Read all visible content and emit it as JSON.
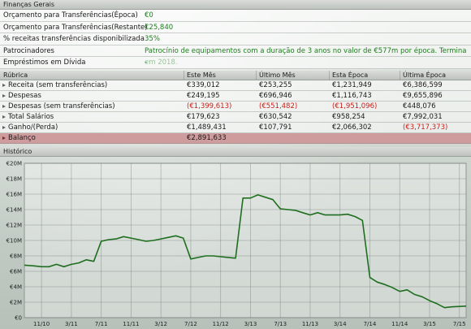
{
  "general": {
    "header": "Finanças Gerais",
    "rows": [
      {
        "label": "Orçamento para Transferências(Época)",
        "value": "€0",
        "tone": "green"
      },
      {
        "label": "Orçamento para Transferências(Restante)",
        "value": "€25,840",
        "tone": "green"
      },
      {
        "label": "% receitas transferências disponibilizada",
        "value": "35%",
        "tone": "green"
      },
      {
        "label": "Patrocinadores",
        "value": "Patrocínio de equipamentos com a duração de 3 anos no valor de €577m por época. Termina em 2018.",
        "tone": "green"
      },
      {
        "label": "Empréstimos em Dívida",
        "value": "-",
        "tone": "green"
      }
    ]
  },
  "table": {
    "headers": [
      "Rúbrica",
      "Este Mês",
      "Último Mês",
      "Esta Época",
      "Última Época"
    ],
    "rows": [
      {
        "label": "Receita (sem transferências)",
        "cells": [
          "€339,012",
          "€253,255",
          "€1,231,949",
          "€6,386,599"
        ],
        "tones": [
          "",
          "",
          "",
          ""
        ]
      },
      {
        "label": "Despesas",
        "cells": [
          "€249,195",
          "€696,946",
          "€1,116,743",
          "€9,655,896"
        ],
        "tones": [
          "",
          "",
          "",
          ""
        ]
      },
      {
        "label": "Despesas (sem transferências)",
        "cells": [
          "(€1,399,613)",
          "(€551,482)",
          "(€1,951,096)",
          "€448,076"
        ],
        "tones": [
          "red",
          "red",
          "red",
          ""
        ]
      },
      {
        "label": "Total Salários",
        "cells": [
          "€179,623",
          "€630,542",
          "€958,254",
          "€7,992,031"
        ],
        "tones": [
          "",
          "",
          "",
          ""
        ]
      },
      {
        "label": "Ganho/(Perda)",
        "cells": [
          "€1,489,431",
          "€107,791",
          "€2,066,302",
          "(€3,717,373)"
        ],
        "tones": [
          "",
          "",
          "",
          "red"
        ]
      }
    ],
    "balance": {
      "label": "Balanço",
      "value": "€2,891,633"
    }
  },
  "history": {
    "header": "Histórico"
  },
  "chart_data": {
    "type": "line",
    "title": "",
    "xlabel": "",
    "ylabel": "",
    "ylim": [
      0,
      20
    ],
    "y_unit": "€ millions",
    "y_ticks": [
      "€0",
      "€2M",
      "€4M",
      "€6M",
      "€8M",
      "€10M",
      "€12M",
      "€14M",
      "€16M",
      "€18M",
      "€20M"
    ],
    "x_ticks": [
      {
        "label": "11/10",
        "x": 1
      },
      {
        "label": "3/11",
        "x": 5
      },
      {
        "label": "7/11",
        "x": 9
      },
      {
        "label": "11/11",
        "x": 13
      },
      {
        "label": "3/12",
        "x": 17
      },
      {
        "label": "7/12",
        "x": 21
      },
      {
        "label": "11/12",
        "x": 25
      },
      {
        "label": "3/13",
        "x": 29
      },
      {
        "label": "7/13",
        "x": 33
      },
      {
        "label": "11/13",
        "x": 37
      },
      {
        "label": "3/14",
        "x": 41
      },
      {
        "label": "7/14",
        "x": 45
      },
      {
        "label": "11/14",
        "x": 49
      },
      {
        "label": "3/15",
        "x": 53
      },
      {
        "label": "7/15",
        "x": 57
      }
    ],
    "xlim": [
      -1.3,
      57.9
    ],
    "line_color": "#1f6e1f",
    "grid": true,
    "series": [
      {
        "values": [
          {
            "x": -1.3,
            "y": 6.8
          },
          {
            "x": 0.0,
            "y": 6.7
          },
          {
            "x": 1.0,
            "y": 6.6
          },
          {
            "x": 2.0,
            "y": 6.6
          },
          {
            "x": 3.0,
            "y": 6.9
          },
          {
            "x": 4.0,
            "y": 6.6
          },
          {
            "x": 5.0,
            "y": 6.9
          },
          {
            "x": 6.0,
            "y": 7.1
          },
          {
            "x": 7.0,
            "y": 7.5
          },
          {
            "x": 8.0,
            "y": 7.3
          },
          {
            "x": 9.0,
            "y": 9.9
          },
          {
            "x": 10.0,
            "y": 10.1
          },
          {
            "x": 11.0,
            "y": 10.2
          },
          {
            "x": 12.0,
            "y": 10.5
          },
          {
            "x": 13.0,
            "y": 10.3
          },
          {
            "x": 14.0,
            "y": 10.1
          },
          {
            "x": 15.0,
            "y": 9.9
          },
          {
            "x": 16.0,
            "y": 10.0
          },
          {
            "x": 17.0,
            "y": 10.2
          },
          {
            "x": 18.0,
            "y": 10.4
          },
          {
            "x": 19.0,
            "y": 10.6
          },
          {
            "x": 20.0,
            "y": 10.3
          },
          {
            "x": 21.0,
            "y": 7.6
          },
          {
            "x": 22.0,
            "y": 7.8
          },
          {
            "x": 23.0,
            "y": 8.0
          },
          {
            "x": 24.0,
            "y": 8.0
          },
          {
            "x": 25.0,
            "y": 7.9
          },
          {
            "x": 26.0,
            "y": 7.8
          },
          {
            "x": 27.0,
            "y": 7.7
          },
          {
            "x": 28.0,
            "y": 15.5
          },
          {
            "x": 29.0,
            "y": 15.5
          },
          {
            "x": 30.0,
            "y": 15.9
          },
          {
            "x": 31.0,
            "y": 15.6
          },
          {
            "x": 32.0,
            "y": 15.3
          },
          {
            "x": 33.0,
            "y": 14.1
          },
          {
            "x": 34.0,
            "y": 14.0
          },
          {
            "x": 35.0,
            "y": 13.9
          },
          {
            "x": 36.0,
            "y": 13.6
          },
          {
            "x": 37.0,
            "y": 13.3
          },
          {
            "x": 38.0,
            "y": 13.6
          },
          {
            "x": 39.0,
            "y": 13.3
          },
          {
            "x": 40.0,
            "y": 13.3
          },
          {
            "x": 41.0,
            "y": 13.3
          },
          {
            "x": 42.0,
            "y": 13.4
          },
          {
            "x": 43.0,
            "y": 13.1
          },
          {
            "x": 44.0,
            "y": 12.6
          },
          {
            "x": 45.0,
            "y": 5.2
          },
          {
            "x": 46.0,
            "y": 4.6
          },
          {
            "x": 47.0,
            "y": 4.3
          },
          {
            "x": 48.0,
            "y": 3.9
          },
          {
            "x": 49.0,
            "y": 3.4
          },
          {
            "x": 50.0,
            "y": 3.6
          },
          {
            "x": 51.0,
            "y": 3.0
          },
          {
            "x": 52.0,
            "y": 2.7
          },
          {
            "x": 53.0,
            "y": 2.2
          },
          {
            "x": 54.0,
            "y": 1.8
          },
          {
            "x": 55.0,
            "y": 1.3
          },
          {
            "x": 56.0,
            "y": 1.4
          },
          {
            "x": 57.9,
            "y": 1.5
          }
        ]
      }
    ]
  }
}
